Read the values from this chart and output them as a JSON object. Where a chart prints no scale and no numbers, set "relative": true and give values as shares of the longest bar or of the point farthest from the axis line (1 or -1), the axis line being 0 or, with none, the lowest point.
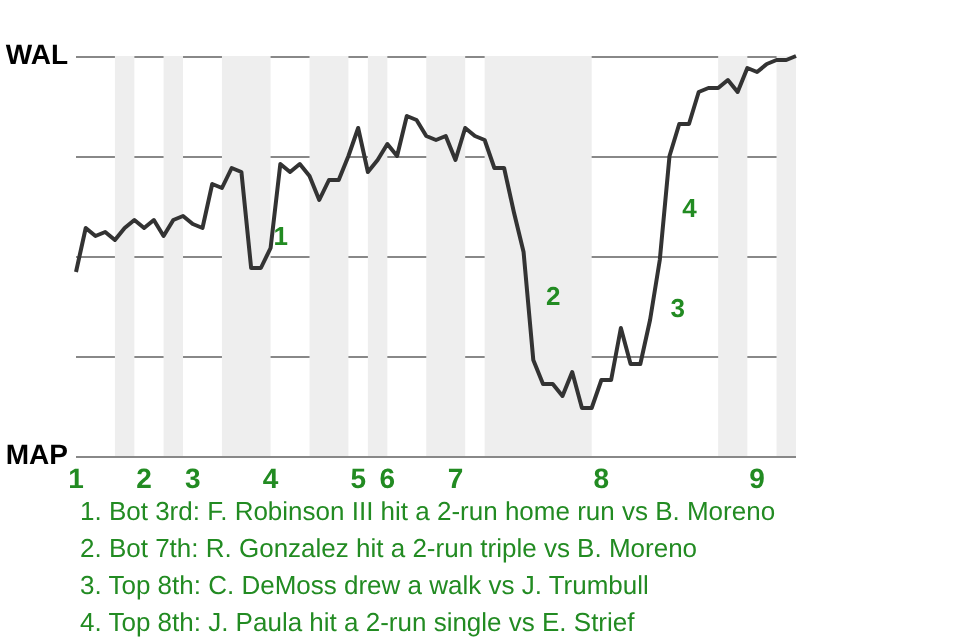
{
  "chart_data": {
    "type": "line",
    "relative": true,
    "categories": [
      "1",
      null,
      null,
      null,
      null,
      null,
      null,
      "2",
      null,
      null,
      null,
      null,
      "3",
      null,
      null,
      null,
      null,
      null,
      null,
      null,
      "4",
      null,
      null,
      null,
      null,
      null,
      null,
      null,
      null,
      "5",
      null,
      null,
      "6",
      null,
      null,
      null,
      null,
      null,
      null,
      "7",
      null,
      null,
      null,
      null,
      null,
      null,
      null,
      null,
      null,
      null,
      null,
      null,
      null,
      null,
      "8",
      null,
      null,
      null,
      null,
      null,
      null,
      null,
      null,
      null,
      null,
      null,
      null,
      null,
      null,
      null,
      "9",
      null,
      null,
      null,
      null
    ],
    "series": [
      {
        "color": "#333333",
        "values": [
          0.46,
          0.57,
          0.55,
          0.56,
          0.54,
          0.57,
          0.59,
          0.57,
          0.59,
          0.55,
          0.59,
          0.6,
          0.58,
          0.57,
          0.68,
          0.67,
          0.72,
          0.71,
          0.47,
          0.47,
          0.52,
          0.73,
          0.71,
          0.73,
          0.7,
          0.64,
          0.69,
          0.69,
          0.75,
          0.82,
          0.71,
          0.74,
          0.78,
          0.75,
          0.85,
          0.84,
          0.8,
          0.79,
          0.8,
          0.74,
          0.82,
          0.8,
          0.79,
          0.72,
          0.72,
          0.61,
          0.51,
          0.24,
          0.18,
          0.18,
          0.15,
          0.21,
          0.12,
          0.12,
          0.19,
          0.19,
          0.32,
          0.23,
          0.23,
          0.34,
          0.49,
          0.75,
          0.83,
          0.83,
          0.91,
          0.92,
          0.92,
          0.94,
          0.91,
          0.97,
          0.96,
          0.98,
          0.99,
          0.99,
          1.0
        ]
      }
    ],
    "grid": "y",
    "marker": "none",
    "annotations": [
      "WAL",
      "MAP",
      "1",
      "2",
      "3",
      "4",
      "1. Bot 3rd: F. Robinson III hit a 2-run home run vs B. Moreno",
      "2. Bot 7th: R. Gonzalez hit a 2-run triple vs B. Moreno",
      "3. Top 8th: C. DeMoss drew a walk vs J. Trumbull",
      "4. Top 8th: J. Paula hit a 2-run single vs E. Strief"
    ]
  }
}
